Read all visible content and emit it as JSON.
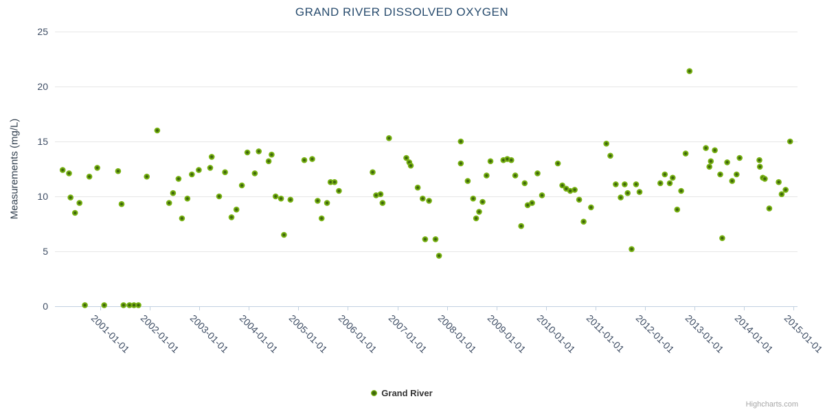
{
  "header": {
    "title": "GRAND RIVER DISSOLVED OXYGEN"
  },
  "legend": {
    "series_label": "Grand River"
  },
  "credit": {
    "label": "Highcharts.com"
  },
  "colors": {
    "marker_outer": "#77b112",
    "marker_core": "#3e660c",
    "gridline": "#e6e6e6",
    "axis_line": "#c0d0e0",
    "title_text": "#274b6d",
    "axis_label_text": "#3d4c63",
    "legend_text": "#333333",
    "credit_text": "#a5a5a5"
  },
  "chart_data": {
    "type": "scatter",
    "title": "GRAND RIVER DISSOLVED OXYGEN",
    "xlabel": "",
    "ylabel": "Measurements (mg/L)",
    "ylim": [
      0,
      25
    ],
    "y_ticks": [
      0,
      5,
      10,
      15,
      20,
      25
    ],
    "y_tick_labels": [
      "0",
      "5",
      "10",
      "15",
      "20",
      "25"
    ],
    "x_encoding": "decimal_year",
    "x_range": [
      2000.085,
      2015.08
    ],
    "x_tick_years": [
      2001,
      2002,
      2003,
      2004,
      2005,
      2006,
      2007,
      2008,
      2009,
      2010,
      2011,
      2012,
      2013,
      2014,
      2015
    ],
    "x_tick_labels": [
      "2001-01-01",
      "2002-01-01",
      "2003-01-01",
      "2004-01-01",
      "2005-01-01",
      "2006-01-01",
      "2007-01-01",
      "2008-01-01",
      "2009-01-01",
      "2010-01-01",
      "2011-01-01",
      "2012-01-01",
      "2013-01-01",
      "2014-01-01",
      "2015-01-01"
    ],
    "grid": "horizontal",
    "legend_position": "bottom-center",
    "series": [
      {
        "name": "Grand River",
        "points": [
          [
            2000.24,
            12.4
          ],
          [
            2000.37,
            12.1
          ],
          [
            2000.4,
            9.9
          ],
          [
            2000.49,
            8.5
          ],
          [
            2000.58,
            9.4
          ],
          [
            2000.69,
            0.1
          ],
          [
            2000.78,
            11.8
          ],
          [
            2000.94,
            12.6
          ],
          [
            2001.08,
            0.1
          ],
          [
            2001.36,
            12.3
          ],
          [
            2001.43,
            9.3
          ],
          [
            2001.47,
            0.1
          ],
          [
            2001.59,
            0.1
          ],
          [
            2001.68,
            0.1
          ],
          [
            2001.77,
            0.1
          ],
          [
            2001.94,
            11.8
          ],
          [
            2002.15,
            16.0
          ],
          [
            2002.39,
            9.4
          ],
          [
            2002.47,
            10.3
          ],
          [
            2002.58,
            11.6
          ],
          [
            2002.65,
            8.0
          ],
          [
            2002.76,
            9.8
          ],
          [
            2002.85,
            12.0
          ],
          [
            2002.99,
            12.4
          ],
          [
            2003.22,
            12.6
          ],
          [
            2003.25,
            13.6
          ],
          [
            2003.4,
            10.0
          ],
          [
            2003.52,
            12.2
          ],
          [
            2003.65,
            8.1
          ],
          [
            2003.75,
            8.8
          ],
          [
            2003.86,
            11.0
          ],
          [
            2003.97,
            14.0
          ],
          [
            2004.12,
            12.1
          ],
          [
            2004.2,
            14.1
          ],
          [
            2004.4,
            13.2
          ],
          [
            2004.46,
            13.8
          ],
          [
            2004.54,
            10.0
          ],
          [
            2004.65,
            9.8
          ],
          [
            2004.71,
            6.5
          ],
          [
            2004.84,
            9.7
          ],
          [
            2005.12,
            13.3
          ],
          [
            2005.28,
            13.4
          ],
          [
            2005.39,
            9.6
          ],
          [
            2005.47,
            8.0
          ],
          [
            2005.58,
            9.4
          ],
          [
            2005.65,
            11.3
          ],
          [
            2005.73,
            11.3
          ],
          [
            2005.82,
            10.5
          ],
          [
            2006.5,
            12.2
          ],
          [
            2006.57,
            10.1
          ],
          [
            2006.66,
            10.2
          ],
          [
            2006.7,
            9.4
          ],
          [
            2006.83,
            15.3
          ],
          [
            2007.18,
            13.5
          ],
          [
            2007.24,
            13.1
          ],
          [
            2007.27,
            12.8
          ],
          [
            2007.41,
            10.8
          ],
          [
            2007.51,
            9.8
          ],
          [
            2007.56,
            6.1
          ],
          [
            2007.64,
            9.6
          ],
          [
            2007.77,
            6.1
          ],
          [
            2007.84,
            4.6
          ],
          [
            2008.28,
            15.0
          ],
          [
            2008.28,
            13.0
          ],
          [
            2008.42,
            11.4
          ],
          [
            2008.53,
            9.8
          ],
          [
            2008.59,
            8.0
          ],
          [
            2008.65,
            8.6
          ],
          [
            2008.72,
            9.5
          ],
          [
            2008.8,
            11.9
          ],
          [
            2008.88,
            13.2
          ],
          [
            2009.14,
            13.3
          ],
          [
            2009.22,
            13.4
          ],
          [
            2009.3,
            13.3
          ],
          [
            2009.38,
            11.9
          ],
          [
            2009.5,
            7.3
          ],
          [
            2009.57,
            11.2
          ],
          [
            2009.63,
            9.2
          ],
          [
            2009.72,
            9.4
          ],
          [
            2009.83,
            12.1
          ],
          [
            2009.92,
            10.1
          ],
          [
            2010.24,
            13.0
          ],
          [
            2010.33,
            11.0
          ],
          [
            2010.41,
            10.7
          ],
          [
            2010.49,
            10.5
          ],
          [
            2010.58,
            10.6
          ],
          [
            2010.67,
            9.7
          ],
          [
            2010.76,
            7.7
          ],
          [
            2010.91,
            9.0
          ],
          [
            2011.22,
            14.8
          ],
          [
            2011.3,
            13.7
          ],
          [
            2011.41,
            11.1
          ],
          [
            2011.51,
            9.9
          ],
          [
            2011.59,
            11.1
          ],
          [
            2011.65,
            10.3
          ],
          [
            2011.73,
            5.2
          ],
          [
            2011.82,
            11.1
          ],
          [
            2011.89,
            10.4
          ],
          [
            2012.31,
            11.2
          ],
          [
            2012.4,
            12.0
          ],
          [
            2012.5,
            11.2
          ],
          [
            2012.56,
            11.7
          ],
          [
            2012.65,
            8.8
          ],
          [
            2012.73,
            10.5
          ],
          [
            2012.82,
            13.9
          ],
          [
            2012.9,
            21.4
          ],
          [
            2013.23,
            14.4
          ],
          [
            2013.3,
            12.7
          ],
          [
            2013.33,
            13.2
          ],
          [
            2013.41,
            14.2
          ],
          [
            2013.52,
            12.0
          ],
          [
            2013.56,
            6.2
          ],
          [
            2013.66,
            13.1
          ],
          [
            2013.76,
            11.4
          ],
          [
            2013.85,
            12.0
          ],
          [
            2013.91,
            13.5
          ],
          [
            2014.31,
            13.3
          ],
          [
            2014.32,
            12.7
          ],
          [
            2014.38,
            11.7
          ],
          [
            2014.42,
            11.6
          ],
          [
            2014.51,
            8.9
          ],
          [
            2014.7,
            11.3
          ],
          [
            2014.76,
            10.2
          ],
          [
            2014.84,
            10.6
          ],
          [
            2014.93,
            15.0
          ]
        ]
      }
    ]
  }
}
